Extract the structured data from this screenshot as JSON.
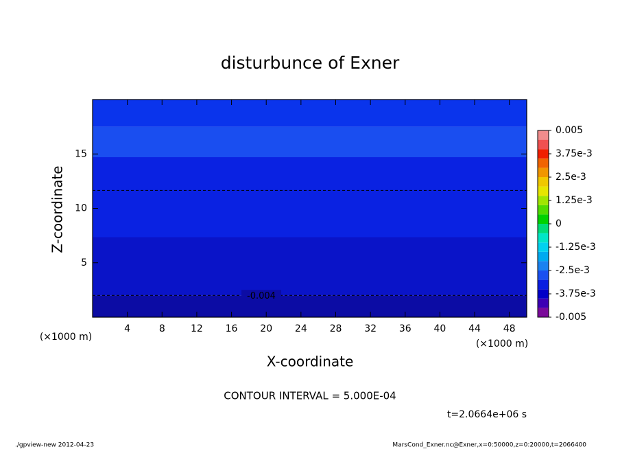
{
  "chart_data": {
    "type": "contour",
    "title": "disturbunce of Exner",
    "x_label": "X-coordinate",
    "y_label": "Z-coordinate",
    "x_unit": "(×1000 m)",
    "y_unit": "(×1000 m)",
    "xlim": [
      0,
      50
    ],
    "ylim": [
      0,
      20
    ],
    "xticks": [
      4,
      8,
      12,
      16,
      20,
      24,
      28,
      32,
      36,
      40,
      44,
      48
    ],
    "yticks": [
      5,
      10,
      15
    ],
    "bands": [
      {
        "z": [
          0,
          2.0
        ],
        "color": "#0c0ca4"
      },
      {
        "z": [
          2.0,
          7.35
        ],
        "color": "#0a14c8"
      },
      {
        "z": [
          7.35,
          14.7
        ],
        "color": "#0a22e2"
      },
      {
        "z": [
          14.7,
          17.5
        ],
        "color": "#1a4ef0"
      },
      {
        "z": [
          17.5,
          20
        ],
        "color": "#0a34ec"
      }
    ],
    "contours": [
      {
        "z": 2.0,
        "value": -0.004
      },
      {
        "z": 11.65
      }
    ],
    "colorbar": {
      "lim": [
        -0.005,
        0.005
      ],
      "ticks": [
        0.005,
        {
          "value": 0.00375,
          "label": "3.75e-3"
        },
        {
          "value": 0.0025,
          "label": "2.5e-3"
        },
        {
          "value": 0.00125,
          "label": "1.25e-3"
        },
        0,
        {
          "value": -0.00125,
          "label": "-1.25e-3"
        },
        {
          "value": -0.0025,
          "label": "-2.5e-3"
        },
        {
          "value": -0.00375,
          "label": "-3.75e-3"
        },
        -0.005
      ],
      "colors": [
        "#7a0a9a",
        "#3c00b4",
        "#0000c8",
        "#0a1ee0",
        "#1a50f0",
        "#1a82f0",
        "#00aaf0",
        "#00d2f0",
        "#00e6c8",
        "#00dc78",
        "#00d200",
        "#50dc00",
        "#a0e600",
        "#e6e600",
        "#f0c800",
        "#f09600",
        "#f06400",
        "#f01e00",
        "#f05050",
        "#f08c8c"
      ]
    },
    "contour_interval": "CONTOUR INTERVAL = 5.000E-04",
    "time_label": "t=2.0664e+06 s",
    "footer_left": "./gpview-new   2012-04-23",
    "footer_right": "MarsCond_Exner.nc@Exner,x=0:50000,z=0:20000,t=2066400"
  }
}
